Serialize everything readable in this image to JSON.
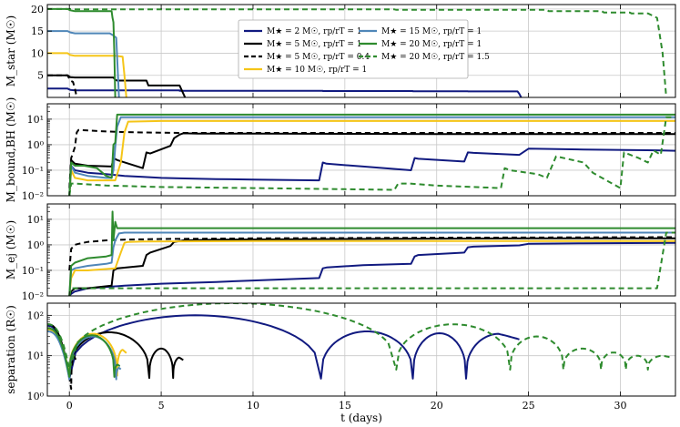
{
  "figure": {
    "xlabel": "t (days)",
    "xlim": [
      -1.2,
      33
    ],
    "xticks": [
      0,
      5,
      10,
      15,
      20,
      25,
      30
    ]
  },
  "legend": {
    "placement": "upper-center",
    "entries": [
      {
        "id": "m2",
        "label": "M★ = 2 M☉, rp/rT = 1",
        "color": "#111a80",
        "dash": "solid"
      },
      {
        "id": "m5",
        "label": "M★ = 5 M☉, rp/rT = 1",
        "color": "#000000",
        "dash": "solid"
      },
      {
        "id": "m5b",
        "label": "M★ = 5 M☉, rp/rT = 0.4",
        "color": "#000000",
        "dash": "dashed"
      },
      {
        "id": "m10",
        "label": "M★ = 10 M☉, rp/rT = 1",
        "color": "#f5c518",
        "dash": "solid"
      },
      {
        "id": "m15",
        "label": "M★ = 15 M☉, rp/rT = 1",
        "color": "#4f86b8",
        "dash": "solid"
      },
      {
        "id": "m20",
        "label": "M★ = 20 M☉, rp/rT = 1",
        "color": "#2e8b2e",
        "dash": "solid"
      },
      {
        "id": "m20b",
        "label": "M★ = 20 M☉, rp/rT = 1.5",
        "color": "#2e8b2e",
        "dash": "dashed"
      }
    ]
  },
  "chart_data": [
    {
      "type": "line",
      "ylabel": "M_star (M☉)",
      "yscale": "linear",
      "ylim": [
        0,
        21
      ],
      "yticks": [
        5,
        10,
        15,
        20
      ],
      "ytick_labels": [
        "5",
        "10",
        "15",
        "20"
      ],
      "series": [
        {
          "id": "m2",
          "x": [
            -1.2,
            -0.1,
            0.05,
            0.3,
            6,
            6,
            13.8,
            13.8,
            18.7,
            18.7,
            21.7,
            21.7,
            24.4,
            24.5,
            24.6
          ],
          "y": [
            2,
            2,
            1.7,
            1.6,
            1.6,
            1.5,
            1.5,
            1.45,
            1.45,
            1.4,
            1.4,
            1.35,
            1.35,
            0.8,
            0
          ]
        },
        {
          "id": "m5",
          "x": [
            -1.2,
            -0.1,
            0.05,
            0.3,
            2.4,
            2.5,
            2.6,
            4.2,
            4.3,
            6,
            6.1,
            6.3
          ],
          "y": [
            5,
            5,
            4.6,
            4.5,
            4.5,
            4,
            3.8,
            3.8,
            2.7,
            2.7,
            1.8,
            0
          ]
        },
        {
          "id": "m5b",
          "x": [
            -1.2,
            -0.1,
            0.05,
            0.2,
            0.3,
            0.4
          ],
          "y": [
            5,
            5,
            3.8,
            3.5,
            2,
            0
          ]
        },
        {
          "id": "m10",
          "x": [
            -1.2,
            -0.1,
            0.05,
            0.3,
            2.5,
            2.7,
            2.9,
            3.0,
            3.1
          ],
          "y": [
            10,
            10,
            9.6,
            9.4,
            9.4,
            9.3,
            9.2,
            5,
            0
          ]
        },
        {
          "id": "m15",
          "x": [
            -1.2,
            -0.1,
            0.05,
            0.3,
            2.2,
            2.4,
            2.55,
            2.7
          ],
          "y": [
            15,
            15,
            14.7,
            14.5,
            14.5,
            14,
            13.5,
            0
          ]
        },
        {
          "id": "m20",
          "x": [
            -1.2,
            -0.1,
            0.05,
            0.3,
            2.3,
            2.35,
            2.4,
            2.45,
            2.5
          ],
          "y": [
            20,
            20,
            19.7,
            19.5,
            19.5,
            18,
            17,
            10,
            0
          ]
        },
        {
          "id": "m20b",
          "x": [
            -1.2,
            0,
            0.3,
            17.7,
            17.8,
            26,
            26.1,
            29,
            29.1,
            30.5,
            30.6,
            31.5,
            32,
            32.3,
            32.5
          ],
          "y": [
            20,
            20,
            19.9,
            19.9,
            19.8,
            19.8,
            19.5,
            19.5,
            19.2,
            19.2,
            19,
            19,
            18,
            10,
            0
          ]
        }
      ]
    },
    {
      "type": "line",
      "ylabel": "M_bound,BH (M☉)",
      "yscale": "log",
      "ylim": [
        0.01,
        40
      ],
      "yticks": [
        0.01,
        0.1,
        1,
        10
      ],
      "ytick_labels": [
        "10⁻²",
        "10⁻¹",
        "10⁰",
        "10¹"
      ],
      "series": [
        {
          "id": "m2",
          "x": [
            0.0,
            0.1,
            0.3,
            1,
            2,
            3,
            4,
            5,
            6,
            8,
            10,
            12,
            13.6,
            13.8,
            14,
            16,
            18.6,
            18.8,
            19,
            21.5,
            21.7,
            22,
            24.5,
            25,
            28,
            32,
            33
          ],
          "y": [
            0.01,
            0.15,
            0.1,
            0.08,
            0.07,
            0.06,
            0.055,
            0.05,
            0.048,
            0.045,
            0.043,
            0.041,
            0.04,
            0.2,
            0.18,
            0.14,
            0.1,
            0.3,
            0.28,
            0.22,
            0.5,
            0.48,
            0.4,
            0.7,
            0.65,
            0.6,
            0.58
          ]
        },
        {
          "id": "m5",
          "x": [
            0.0,
            0.1,
            0.3,
            1,
            2.3,
            2.4,
            2.6,
            4,
            4.2,
            4.4,
            5.5,
            5.7,
            6,
            6.2,
            7,
            10,
            20,
            33
          ],
          "y": [
            0.01,
            0.25,
            0.18,
            0.15,
            0.14,
            0.3,
            0.25,
            0.12,
            0.5,
            0.45,
            0.9,
            1.8,
            2.5,
            2.8,
            2.7,
            2.7,
            2.6,
            2.6
          ]
        },
        {
          "id": "m5b",
          "x": [
            0.0,
            0.1,
            0.3,
            0.4,
            0.5,
            1,
            2,
            3,
            4,
            6,
            10,
            33
          ],
          "y": [
            0.02,
            0.3,
            0.8,
            3,
            3.8,
            3.6,
            3.3,
            3.1,
            3.0,
            2.9,
            2.9,
            2.9
          ]
        },
        {
          "id": "m10",
          "x": [
            0.0,
            0.1,
            0.3,
            1,
            2,
            2.5,
            2.8,
            3.0,
            3.2,
            5,
            33
          ],
          "y": [
            0.01,
            0.1,
            0.05,
            0.04,
            0.04,
            0.04,
            0.2,
            3.0,
            8,
            8.5,
            8.5
          ]
        },
        {
          "id": "m15",
          "x": [
            0.0,
            0.1,
            0.3,
            1,
            2,
            2.3,
            2.4,
            2.5,
            2.6,
            2.8,
            5,
            33
          ],
          "y": [
            0.01,
            0.15,
            0.08,
            0.06,
            0.05,
            0.05,
            0.1,
            0.8,
            5,
            12,
            12,
            12
          ]
        },
        {
          "id": "m20",
          "x": [
            0.0,
            0.1,
            0.3,
            0.8,
            1.5,
            2.0,
            2.3,
            2.4,
            2.5,
            2.6,
            5,
            33
          ],
          "y": [
            0.01,
            0.2,
            0.15,
            0.15,
            0.12,
            0.06,
            0.05,
            1.0,
            1.2,
            15,
            15,
            15
          ]
        },
        {
          "id": "m20b",
          "x": [
            0.0,
            0.1,
            0.3,
            2,
            5,
            10,
            15,
            17.7,
            17.9,
            18.5,
            20,
            23.5,
            23.7,
            24,
            25.5,
            26,
            26.5,
            28,
            28.5,
            29,
            30,
            30.2,
            31,
            31.5,
            31.8,
            32.2,
            32.5,
            33
          ],
          "y": [
            0.01,
            0.03,
            0.03,
            0.025,
            0.022,
            0.02,
            0.018,
            0.017,
            0.03,
            0.03,
            0.025,
            0.02,
            0.12,
            0.1,
            0.07,
            0.05,
            0.35,
            0.2,
            0.08,
            0.05,
            0.02,
            0.5,
            0.3,
            0.2,
            0.6,
            0.4,
            12,
            12
          ]
        }
      ]
    },
    {
      "type": "line",
      "ylabel": "M_ej (M☉)",
      "yscale": "log",
      "ylim": [
        0.01,
        40
      ],
      "yticks": [
        0.01,
        0.1,
        1,
        10
      ],
      "ytick_labels": [
        "10⁻²",
        "10⁻¹",
        "10⁰",
        "10¹"
      ],
      "series": [
        {
          "id": "m2",
          "x": [
            0.0,
            0.1,
            0.3,
            1,
            3,
            5,
            8,
            10,
            13.6,
            13.8,
            14,
            16,
            18.6,
            18.8,
            19,
            21.5,
            21.7,
            22,
            24.5,
            25,
            28,
            33
          ],
          "y": [
            0.01,
            0.012,
            0.015,
            0.02,
            0.025,
            0.03,
            0.035,
            0.04,
            0.05,
            0.12,
            0.13,
            0.16,
            0.18,
            0.35,
            0.4,
            0.5,
            0.8,
            0.85,
            0.95,
            1.1,
            1.15,
            1.2
          ]
        },
        {
          "id": "m5",
          "x": [
            0.0,
            0.1,
            0.3,
            1,
            2.3,
            2.4,
            2.6,
            4,
            4.2,
            4.4,
            5.5,
            5.7,
            6,
            6.2,
            8,
            15,
            25,
            33
          ],
          "y": [
            0.01,
            0.015,
            0.02,
            0.02,
            0.025,
            0.1,
            0.12,
            0.15,
            0.4,
            0.5,
            0.9,
            1.3,
            1.4,
            1.5,
            1.6,
            1.7,
            1.8,
            1.8
          ]
        },
        {
          "id": "m5b",
          "x": [
            0.0,
            0.1,
            0.3,
            0.5,
            1,
            2,
            3,
            5,
            10,
            20,
            33
          ],
          "y": [
            0.1,
            0.7,
            1.0,
            1.1,
            1.3,
            1.5,
            1.6,
            1.7,
            1.8,
            1.9,
            2.0
          ]
        },
        {
          "id": "m10",
          "x": [
            0.0,
            0.1,
            0.3,
            1,
            2.5,
            2.8,
            3.0,
            3.2,
            4,
            10,
            33
          ],
          "y": [
            0.01,
            0.05,
            0.1,
            0.1,
            0.12,
            0.5,
            1.2,
            1.3,
            1.35,
            1.4,
            1.4
          ]
        },
        {
          "id": "m15",
          "x": [
            0.0,
            0.1,
            0.3,
            1,
            2,
            2.3,
            2.4,
            2.5,
            2.7,
            3,
            10,
            33
          ],
          "y": [
            0.01,
            0.1,
            0.12,
            0.15,
            0.18,
            0.2,
            0.8,
            1.5,
            2.8,
            3.0,
            3.0,
            3.0
          ]
        },
        {
          "id": "m20",
          "x": [
            0.0,
            0.1,
            0.3,
            1,
            2,
            2.3,
            2.35,
            2.4,
            2.5,
            2.6,
            3,
            10,
            33
          ],
          "y": [
            0.01,
            0.15,
            0.2,
            0.3,
            0.35,
            0.4,
            20,
            1.5,
            8,
            4.5,
            4.5,
            4.5,
            4.5
          ]
        },
        {
          "id": "m20b",
          "x": [
            0.0,
            0.1,
            0.3,
            2,
            5,
            10,
            20,
            30,
            32,
            32.5,
            33
          ],
          "y": [
            0.01,
            0.02,
            0.02,
            0.02,
            0.02,
            0.02,
            0.02,
            0.02,
            0.02,
            3.0,
            3.0
          ]
        }
      ]
    },
    {
      "type": "line",
      "ylabel": "separation (R☉)",
      "yscale": "log",
      "ylim": [
        1,
        200
      ],
      "yticks": [
        1,
        10,
        100
      ],
      "ytick_labels": [
        "10⁰",
        "10¹",
        "10²"
      ],
      "series": [
        {
          "id": "m2",
          "periapsis": [
            0,
            13.7,
            18.7,
            21.6
          ],
          "max": [
            70,
            100,
            40,
            36,
            35
          ],
          "end": 24.5,
          "start": 55,
          "min": 2.7
        },
        {
          "id": "m5",
          "periapsis": [
            0,
            4.35,
            5.65
          ],
          "max": [
            55,
            38,
            15,
            9
          ],
          "end": 6.2,
          "start": 60,
          "min": 2.8
        },
        {
          "id": "m5b",
          "periapsis": [
            0.1
          ],
          "max": [
            28,
            10
          ],
          "end": 0.35,
          "start": 45,
          "min": 1.5
        },
        {
          "id": "m10",
          "periapsis": [
            0,
            2.6
          ],
          "max": [
            52,
            35,
            14
          ],
          "end": 3.1,
          "start": 45,
          "min": 3.2
        },
        {
          "id": "m15",
          "periapsis": [
            0,
            2.55
          ],
          "max": [
            40,
            30,
            5
          ],
          "end": 2.8,
          "start": 40,
          "min": 2.6
        },
        {
          "id": "m20",
          "periapsis": [
            0,
            2.45
          ],
          "max": [
            48,
            32,
            6
          ],
          "end": 2.75,
          "start": 48,
          "min": 3.0
        },
        {
          "id": "m20b",
          "periapsis": [
            0,
            17.8,
            24.0,
            26.9,
            28.95,
            30.3,
            31.5
          ],
          "max": [
            60,
            200,
            60,
            30,
            15,
            12,
            10,
            10
          ],
          "end": 32.8,
          "start": 60,
          "min": 4.5
        }
      ]
    }
  ]
}
